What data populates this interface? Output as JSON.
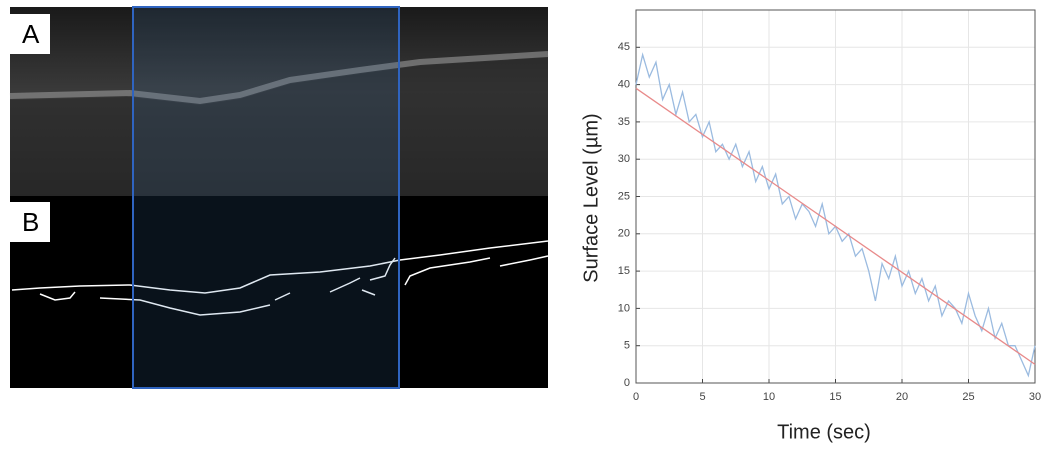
{
  "panel_labels": [
    "A",
    "B"
  ],
  "chart_data": {
    "type": "line",
    "xlabel": "Time (sec)",
    "ylabel": "Surface Level (µm)",
    "xlim": [
      0,
      30
    ],
    "xticks": [
      0,
      5,
      10,
      15,
      20,
      25,
      30
    ],
    "ylim": [
      0,
      50
    ],
    "yticks": [
      0,
      5,
      10,
      15,
      20,
      25,
      30,
      35,
      40,
      45
    ],
    "grid": true,
    "series": [
      {
        "color": "#9bbbe0",
        "x": [
          0,
          0.5,
          1,
          1.5,
          2,
          2.5,
          3,
          3.5,
          4,
          4.5,
          5,
          5.5,
          6,
          6.5,
          7,
          7.5,
          8,
          8.5,
          9,
          9.5,
          10,
          10.5,
          11,
          11.5,
          12,
          12.5,
          13,
          13.5,
          14,
          14.5,
          15,
          15.5,
          16,
          16.5,
          17,
          17.5,
          18,
          18.5,
          19,
          19.5,
          20,
          20.5,
          21,
          21.5,
          22,
          22.5,
          23,
          23.5,
          24,
          24.5,
          25,
          25.5,
          26,
          26.5,
          27,
          27.5,
          28,
          28.5,
          29,
          29.5,
          30
        ],
        "values": [
          40,
          44,
          41,
          43,
          38,
          40,
          36,
          39,
          35,
          36,
          33,
          35,
          31,
          32,
          30,
          32,
          29,
          31,
          27,
          29,
          26,
          28,
          24,
          25,
          22,
          24,
          23,
          21,
          24,
          20,
          21,
          19,
          20,
          17,
          18,
          15,
          11,
          16,
          14,
          17,
          13,
          15,
          12,
          14,
          11,
          13,
          9,
          11,
          10,
          8,
          12,
          9,
          7,
          10,
          6,
          8,
          5,
          5,
          3,
          1,
          5
        ]
      },
      {
        "color": "#e88a8a",
        "x": [
          0,
          30
        ],
        "values": [
          39.5,
          2.5
        ]
      }
    ]
  }
}
